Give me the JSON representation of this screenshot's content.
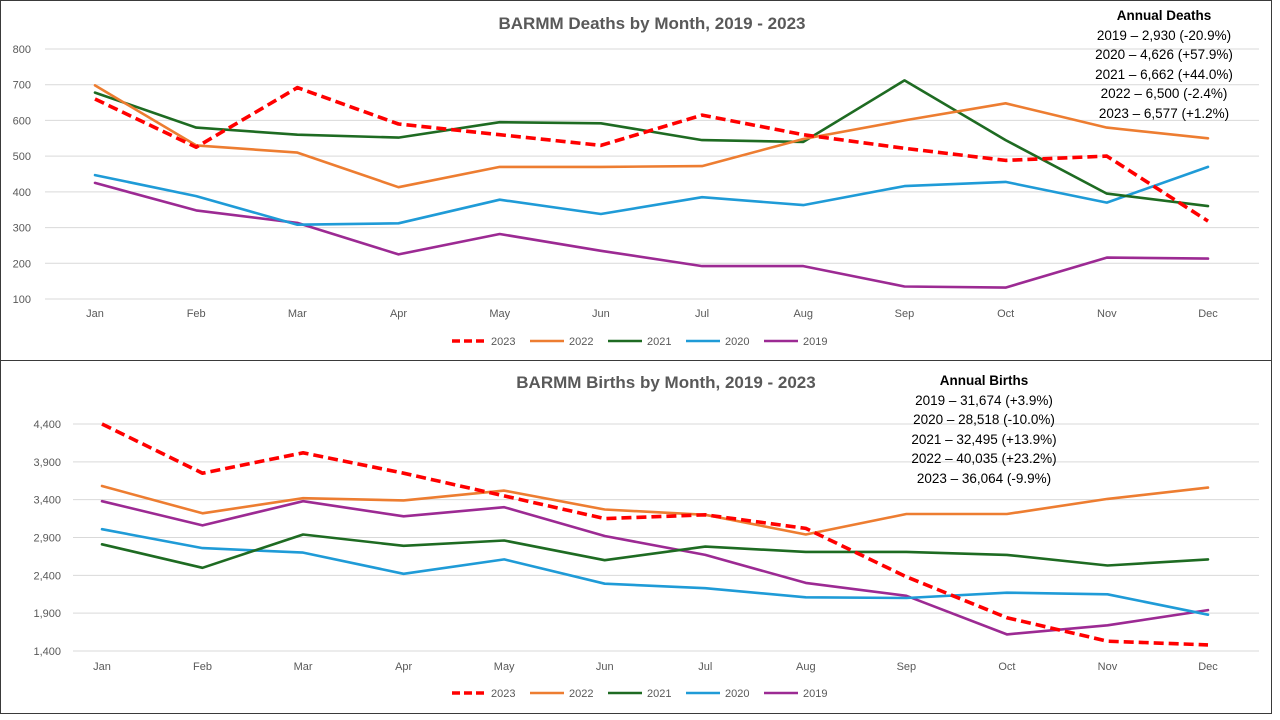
{
  "chart_data": [
    {
      "type": "line",
      "title": "BARMM Deaths by Month, 2019 - 2023",
      "categories": [
        "Jan",
        "Feb",
        "Mar",
        "Apr",
        "May",
        "Jun",
        "Jul",
        "Aug",
        "Sep",
        "Oct",
        "Nov",
        "Dec"
      ],
      "ylim": [
        100,
        800
      ],
      "yticks": [
        "100",
        "200",
        "300",
        "400",
        "500",
        "600",
        "700",
        "800"
      ],
      "grid": true,
      "legend_position": "bottom",
      "series": [
        {
          "name": "2023",
          "color": "#ff0000",
          "dashed": true,
          "values": [
            660,
            525,
            692,
            590,
            560,
            530,
            615,
            560,
            522,
            488,
            500,
            318
          ]
        },
        {
          "name": "2022",
          "color": "#ed7d31",
          "dashed": false,
          "values": [
            698,
            530,
            510,
            413,
            470,
            470,
            472,
            548,
            600,
            648,
            580,
            550
          ]
        },
        {
          "name": "2021",
          "color": "#1e6b22",
          "dashed": false,
          "values": [
            678,
            580,
            560,
            552,
            595,
            592,
            545,
            540,
            712,
            545,
            395,
            360
          ]
        },
        {
          "name": "2020",
          "color": "#1f9bd7",
          "dashed": false,
          "values": [
            447,
            388,
            308,
            312,
            378,
            338,
            385,
            363,
            416,
            428,
            370,
            470
          ]
        },
        {
          "name": "2019",
          "color": "#9c2a93",
          "dashed": false,
          "values": [
            425,
            348,
            313,
            225,
            282,
            235,
            192,
            192,
            135,
            132,
            216,
            213
          ]
        }
      ],
      "annotation": {
        "heading": "Annual Deaths",
        "lines": [
          "2019 – 2,930 (-20.9%)",
          "2020 – 4,626 (+57.9%)",
          "2021 – 6,662 (+44.0%)",
          "2022 – 6,500 (-2.4%)",
          "2023 – 6,577 (+1.2%)"
        ]
      }
    },
    {
      "type": "line",
      "title": "BARMM Births by Month, 2019 - 2023",
      "categories": [
        "Jan",
        "Feb",
        "Mar",
        "Apr",
        "May",
        "Jun",
        "Jul",
        "Aug",
        "Sep",
        "Oct",
        "Nov",
        "Dec"
      ],
      "ylim": [
        1400,
        4400
      ],
      "yticks": [
        "1,400",
        "1,900",
        "2,400",
        "2,900",
        "3,400",
        "3,900",
        "4,400"
      ],
      "grid": true,
      "legend_position": "bottom",
      "series": [
        {
          "name": "2023",
          "color": "#ff0000",
          "dashed": true,
          "values": [
            4400,
            3750,
            4020,
            3750,
            3450,
            3150,
            3200,
            3020,
            2380,
            1840,
            1530,
            1480
          ]
        },
        {
          "name": "2022",
          "color": "#ed7d31",
          "dashed": false,
          "values": [
            3580,
            3220,
            3420,
            3390,
            3520,
            3270,
            3200,
            2940,
            3210,
            3210,
            3410,
            3560
          ]
        },
        {
          "name": "2021",
          "color": "#1e6b22",
          "dashed": false,
          "values": [
            2810,
            2500,
            2940,
            2790,
            2860,
            2600,
            2780,
            2710,
            2710,
            2670,
            2530,
            2610
          ]
        },
        {
          "name": "2020",
          "color": "#1f9bd7",
          "dashed": false,
          "values": [
            3010,
            2760,
            2700,
            2420,
            2610,
            2290,
            2230,
            2110,
            2100,
            2170,
            2150,
            1880
          ]
        },
        {
          "name": "2019",
          "color": "#9c2a93",
          "dashed": false,
          "values": [
            3380,
            3060,
            3380,
            3180,
            3300,
            2920,
            2670,
            2300,
            2130,
            1620,
            1740,
            1940
          ]
        }
      ],
      "annotation": {
        "heading": "Annual Births",
        "lines": [
          "2019 – 31,674 (+3.9%)",
          "2020 – 28,518 (-10.0%)",
          "2021 – 32,495 (+13.9%)",
          "2022 – 40,035 (+23.2%)",
          "2023 – 36,064 (-9.9%)"
        ]
      }
    }
  ]
}
